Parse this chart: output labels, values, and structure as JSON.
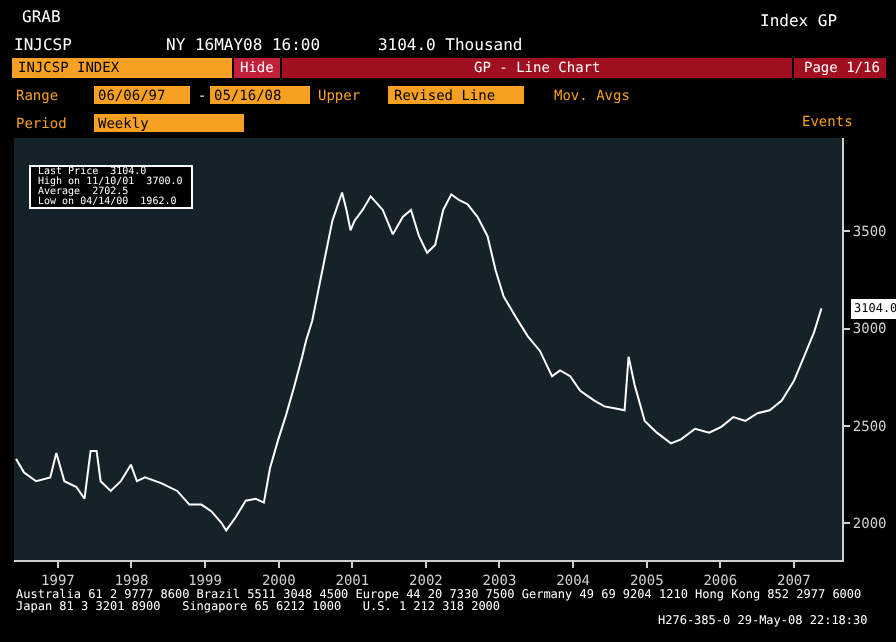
{
  "chart_data": {
    "type": "line",
    "title": "INJCSP",
    "subtitle": "NY 16MAY08 16:00      3104.0 Thousand",
    "x": [
      "1997-06-06",
      "1997-07-16",
      "1997-09-14",
      "1997-11-23",
      "1997-12-23",
      "1998-02-01",
      "1998-04-02",
      "1998-05-12",
      "1998-06-11",
      "1998-07-11",
      "1998-07-31",
      "1998-09-19",
      "1998-11-08",
      "1998-12-28",
      "1999-01-27",
      "1999-03-08",
      "1999-05-27",
      "1999-08-15",
      "1999-10-14",
      "1999-12-13",
      "2000-02-01",
      "2000-03-22",
      "2000-04-14",
      "2000-05-31",
      "2000-07-20",
      "2000-09-08",
      "2000-10-18",
      "2000-11-17",
      "2000-12-27",
      "2001-02-05",
      "2001-03-17",
      "2001-04-26",
      "2001-05-16",
      "2001-06-15",
      "2001-07-15",
      "2001-08-14",
      "2001-09-23",
      "2001-11-10",
      "2001-12-02",
      "2001-12-22",
      "2002-01-11",
      "2002-02-20",
      "2002-04-01",
      "2002-05-31",
      "2002-07-20",
      "2002-09-08",
      "2002-10-18",
      "2002-11-27",
      "2003-01-06",
      "2003-02-15",
      "2003-03-27",
      "2003-05-06",
      "2003-06-15",
      "2003-07-25",
      "2003-09-13",
      "2003-11-02",
      "2003-12-12",
      "2004-01-21",
      "2004-03-21",
      "2004-05-20",
      "2004-07-19",
      "2004-09-17",
      "2004-10-27",
      "2004-12-16",
      "2005-02-04",
      "2005-04-15",
      "2005-06-04",
      "2005-07-24",
      "2005-09-12",
      "2005-10-02",
      "2005-11-01",
      "2005-12-21",
      "2006-02-19",
      "2006-04-30",
      "2006-06-19",
      "2006-08-28",
      "2006-11-06",
      "2007-01-05",
      "2007-03-06",
      "2007-05-05",
      "2007-07-04",
      "2007-09-02",
      "2007-11-01",
      "2007-12-31",
      "2008-02-19",
      "2008-04-09",
      "2008-05-16"
    ],
    "series": [
      {
        "color": "#ffffff",
        "values": [
          2330,
          2260,
          2215,
          2235,
          2360,
          2215,
          2185,
          2125,
          2370,
          2370,
          2215,
          2165,
          2215,
          2300,
          2215,
          2235,
          2205,
          2165,
          2095,
          2095,
          2060,
          2000,
          1962,
          2030,
          2115,
          2125,
          2105,
          2280,
          2425,
          2555,
          2700,
          2855,
          2940,
          3040,
          3195,
          3350,
          3555,
          3700,
          3610,
          3505,
          3555,
          3610,
          3680,
          3610,
          3485,
          3575,
          3610,
          3475,
          3390,
          3430,
          3610,
          3690,
          3660,
          3640,
          3575,
          3475,
          3300,
          3165,
          3060,
          2960,
          2885,
          2755,
          2785,
          2755,
          2680,
          2630,
          2600,
          2590,
          2580,
          2855,
          2710,
          2525,
          2465,
          2410,
          2430,
          2485,
          2465,
          2495,
          2545,
          2525,
          2565,
          2580,
          2630,
          2730,
          2855,
          2980,
          3104
        ]
      }
    ],
    "xlim": [
      "1997-05-27",
      "2008-08-26"
    ],
    "xticks": [
      {
        "value": "1997-12-31",
        "label": "1997"
      },
      {
        "value": "1998-12-31",
        "label": "1998"
      },
      {
        "value": "1999-12-31",
        "label": "1999"
      },
      {
        "value": "2000-12-31",
        "label": "2000"
      },
      {
        "value": "2001-12-31",
        "label": "2001"
      },
      {
        "value": "2002-12-31",
        "label": "2002"
      },
      {
        "value": "2003-12-31",
        "label": "2003"
      },
      {
        "value": "2004-12-31",
        "label": "2004"
      },
      {
        "value": "2005-12-31",
        "label": "2005"
      },
      {
        "value": "2006-12-31",
        "label": "2006"
      },
      {
        "value": "2007-12-31",
        "label": "2007"
      }
    ],
    "ylim": [
      1810,
      3980
    ],
    "yticks": [
      2000,
      2500,
      3000,
      3500
    ],
    "grid": false,
    "marker": "none",
    "line_style": "solid",
    "annotations": [
      "GRAB",
      "Index GP",
      "INJCSP INDEX",
      "Hide",
      "GP - Line Chart",
      "Page 1/16",
      "Range",
      "06/06/97",
      "-",
      "05/16/08",
      "Upper",
      "Revised Line",
      "Mov. Avgs",
      "Period",
      "Weekly",
      "Events",
      "Last Price  3104.0",
      "High on 11/10/01  3700.0",
      "Average  2702.5",
      "Low on 04/14/00  1962.0",
      {
        "text": "3104.0",
        "x": "2008-05-16",
        "y": 3104
      },
      "Australia 61 2 9777 8600 Brazil 5511 3048 4500 Europe 44 20 7330 7500 Germany 49 69 9204 1210 Hong Kong 852 2977 6000",
      "Japan 81 3 3201 8900   Singapore 65 6212 1000   U.S. 1 212 318 2000",
      "H276-385-0 29-May-08 22:18:30"
    ]
  }
}
